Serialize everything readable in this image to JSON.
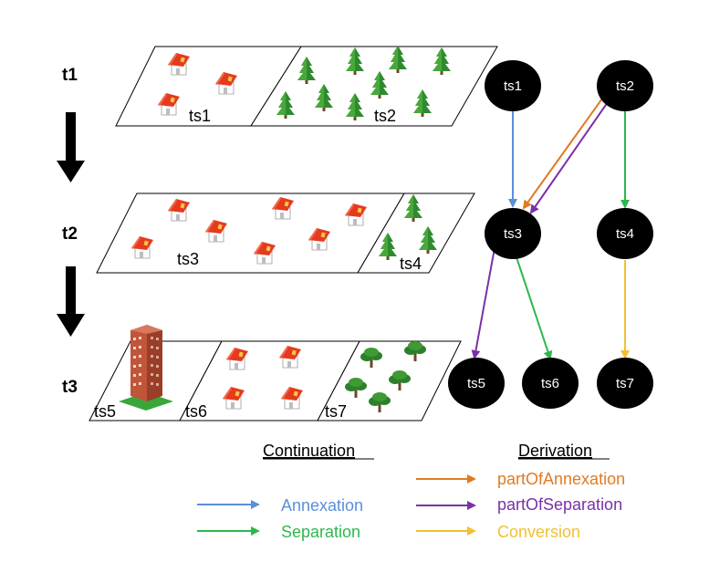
{
  "time_labels": [
    "t1",
    "t2",
    "t3"
  ],
  "strip_labels": {
    "ts1": "ts1",
    "ts2": "ts2",
    "ts3": "ts3",
    "ts4": "ts4",
    "ts5": "ts5",
    "ts6": "ts6",
    "ts7": "ts7"
  },
  "graph_nodes": [
    "ts1",
    "ts2",
    "ts3",
    "ts4",
    "ts5",
    "ts6",
    "ts7"
  ],
  "graph_edges": [
    {
      "from": "ts1",
      "to": "ts3",
      "relation": "Annexation"
    },
    {
      "from": "ts2",
      "to": "ts3",
      "relation": "partOfAnnexation"
    },
    {
      "from": "ts2",
      "to": "ts3",
      "relation": "partOfSeparation"
    },
    {
      "from": "ts2",
      "to": "ts4",
      "relation": "Separation"
    },
    {
      "from": "ts3",
      "to": "ts5",
      "relation": "partOfSeparation"
    },
    {
      "from": "ts3",
      "to": "ts6",
      "relation": "Separation"
    },
    {
      "from": "ts4",
      "to": "ts7",
      "relation": "Conversion"
    }
  ],
  "legend": {
    "continuation_title": "Continuation",
    "derivation_title": "Derivation",
    "annexation": "Annexation",
    "separation": "Separation",
    "part_of_annexation": "partOfAnnexation",
    "part_of_separation": "partOfSeparation",
    "conversion": "Conversion"
  },
  "colors": {
    "annexation": "#5b8fd8",
    "separation": "#2db84d",
    "part_of_annexation": "#e07b22",
    "part_of_separation": "#7a30a8",
    "conversion": "#f2c030",
    "node_fill": "#000000",
    "node_text": "#ffffff"
  },
  "icons": {
    "house": "house-icon",
    "tree": "conifer-tree-icon",
    "building": "highrise-building-icon",
    "broadleaf_tree": "broadleaf-tree-icon",
    "time_arrow": "down-arrow-icon"
  }
}
